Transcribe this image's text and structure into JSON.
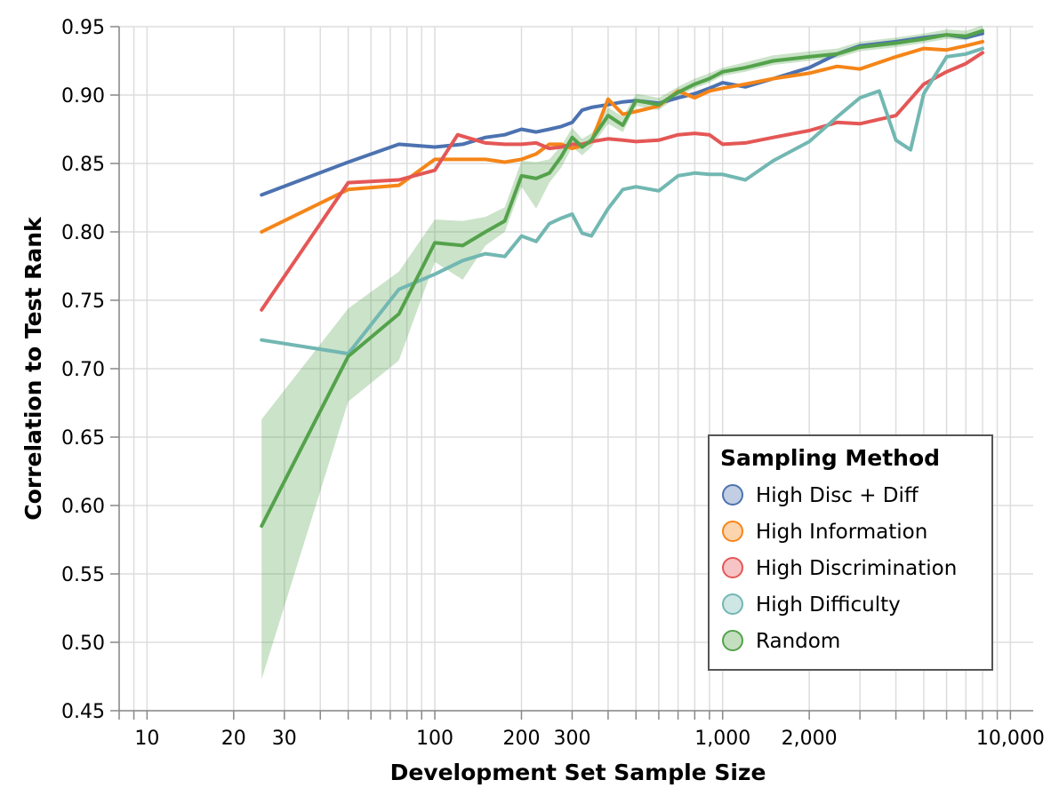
{
  "chart_data": {
    "type": "line",
    "xscale": "log",
    "xlabel": "Development Set Sample Size",
    "ylabel": "Correlation to Test Rank",
    "xlim": [
      8,
      12000
    ],
    "ylim": [
      0.45,
      0.95
    ],
    "grid": true,
    "legend_position": "bottom-right",
    "legend_title": "Sampling Method",
    "x_ticks": [
      {
        "value": 10,
        "label": "10"
      },
      {
        "value": 20,
        "label": "20"
      },
      {
        "value": 30,
        "label": "30"
      },
      {
        "value": 100,
        "label": "100"
      },
      {
        "value": 200,
        "label": "200"
      },
      {
        "value": 300,
        "label": "300"
      },
      {
        "value": 1000,
        "label": "1,000"
      },
      {
        "value": 2000,
        "label": "2,000"
      },
      {
        "value": 10000,
        "label": "10,000"
      }
    ],
    "y_ticks": [
      {
        "value": 0.45,
        "label": "0.45"
      },
      {
        "value": 0.5,
        "label": "0.50"
      },
      {
        "value": 0.55,
        "label": "0.55"
      },
      {
        "value": 0.6,
        "label": "0.60"
      },
      {
        "value": 0.65,
        "label": "0.65"
      },
      {
        "value": 0.7,
        "label": "0.70"
      },
      {
        "value": 0.75,
        "label": "0.75"
      },
      {
        "value": 0.8,
        "label": "0.80"
      },
      {
        "value": 0.85,
        "label": "0.85"
      },
      {
        "value": 0.9,
        "label": "0.90"
      },
      {
        "value": 0.95,
        "label": "0.95"
      }
    ],
    "series": [
      {
        "name": "High Disc + Diff",
        "color": "#4c72b0",
        "x": [
          25,
          50,
          75,
          100,
          125,
          150,
          175,
          200,
          225,
          250,
          275,
          300,
          325,
          350,
          400,
          450,
          500,
          600,
          700,
          800,
          900,
          1000,
          1200,
          1500,
          2000,
          2500,
          3000,
          4000,
          5000,
          6000,
          7000,
          8000
        ],
        "y": [
          0.827,
          0.851,
          0.864,
          0.862,
          0.864,
          0.869,
          0.871,
          0.875,
          0.873,
          0.875,
          0.877,
          0.88,
          0.889,
          0.891,
          0.893,
          0.895,
          0.896,
          0.894,
          0.898,
          0.901,
          0.905,
          0.909,
          0.906,
          0.912,
          0.92,
          0.93,
          0.936,
          0.939,
          0.942,
          0.944,
          0.942,
          0.945
        ]
      },
      {
        "name": "High Information",
        "color": "#f58518",
        "x": [
          25,
          50,
          75,
          100,
          125,
          150,
          175,
          200,
          225,
          250,
          275,
          300,
          325,
          350,
          400,
          450,
          500,
          600,
          700,
          800,
          900,
          1000,
          1200,
          1500,
          2000,
          2500,
          3000,
          4000,
          5000,
          6000,
          7000,
          8000
        ],
        "y": [
          0.8,
          0.831,
          0.834,
          0.853,
          0.853,
          0.853,
          0.851,
          0.853,
          0.857,
          0.864,
          0.864,
          0.861,
          0.863,
          0.866,
          0.897,
          0.886,
          0.888,
          0.892,
          0.903,
          0.898,
          0.903,
          0.905,
          0.908,
          0.912,
          0.916,
          0.921,
          0.919,
          0.928,
          0.934,
          0.933,
          0.936,
          0.939
        ]
      },
      {
        "name": "High Discrimination",
        "color": "#e45756",
        "x": [
          25,
          50,
          75,
          100,
          120,
          150,
          175,
          200,
          225,
          250,
          275,
          300,
          325,
          350,
          400,
          450,
          500,
          600,
          700,
          800,
          900,
          1000,
          1200,
          1500,
          2000,
          2500,
          3000,
          4000,
          5000,
          6000,
          7000,
          8000
        ],
        "y": [
          0.743,
          0.836,
          0.838,
          0.845,
          0.871,
          0.865,
          0.864,
          0.864,
          0.865,
          0.861,
          0.862,
          0.864,
          0.864,
          0.866,
          0.868,
          0.867,
          0.866,
          0.867,
          0.871,
          0.872,
          0.871,
          0.864,
          0.865,
          0.869,
          0.874,
          0.88,
          0.879,
          0.885,
          0.908,
          0.917,
          0.923,
          0.931
        ]
      },
      {
        "name": "High Difficulty",
        "color": "#72b7b2",
        "x": [
          25,
          50,
          75,
          100,
          125,
          150,
          175,
          200,
          225,
          250,
          275,
          300,
          325,
          350,
          400,
          450,
          500,
          600,
          700,
          800,
          900,
          1000,
          1200,
          1500,
          2000,
          2500,
          3000,
          3500,
          4000,
          4500,
          5000,
          6000,
          7000,
          8000
        ],
        "y": [
          0.721,
          0.711,
          0.758,
          0.769,
          0.779,
          0.784,
          0.782,
          0.797,
          0.793,
          0.806,
          0.81,
          0.813,
          0.799,
          0.797,
          0.817,
          0.831,
          0.833,
          0.83,
          0.841,
          0.843,
          0.842,
          0.842,
          0.838,
          0.852,
          0.866,
          0.884,
          0.898,
          0.903,
          0.867,
          0.86,
          0.901,
          0.928,
          0.93,
          0.934
        ]
      },
      {
        "name": "Random",
        "color": "#54a24b",
        "x": [
          25,
          50,
          75,
          100,
          125,
          150,
          175,
          200,
          225,
          250,
          275,
          300,
          325,
          350,
          400,
          450,
          500,
          600,
          700,
          800,
          900,
          1000,
          1200,
          1500,
          2000,
          2500,
          3000,
          4000,
          5000,
          6000,
          7000,
          8000
        ],
        "y": [
          0.585,
          0.709,
          0.74,
          0.792,
          0.79,
          0.8,
          0.808,
          0.841,
          0.839,
          0.843,
          0.855,
          0.869,
          0.862,
          0.867,
          0.885,
          0.878,
          0.896,
          0.893,
          0.902,
          0.908,
          0.912,
          0.917,
          0.92,
          0.925,
          0.928,
          0.93,
          0.935,
          0.938,
          0.941,
          0.944,
          0.943,
          0.947
        ],
        "band_lower": [
          0.473,
          0.676,
          0.706,
          0.778,
          0.765,
          0.79,
          0.8,
          0.833,
          0.817,
          0.836,
          0.847,
          0.862,
          0.856,
          0.862,
          0.879,
          0.873,
          0.892,
          0.889,
          0.899,
          0.905,
          0.909,
          0.914,
          0.917,
          0.922,
          0.925,
          0.927,
          0.932,
          0.935,
          0.938,
          0.941,
          0.94,
          0.944
        ],
        "band_upper": [
          0.663,
          0.744,
          0.771,
          0.809,
          0.808,
          0.811,
          0.818,
          0.852,
          0.851,
          0.853,
          0.863,
          0.876,
          0.868,
          0.872,
          0.891,
          0.884,
          0.901,
          0.898,
          0.906,
          0.912,
          0.916,
          0.92,
          0.924,
          0.929,
          0.932,
          0.934,
          0.939,
          0.942,
          0.945,
          0.948,
          0.947,
          0.951
        ]
      }
    ]
  }
}
